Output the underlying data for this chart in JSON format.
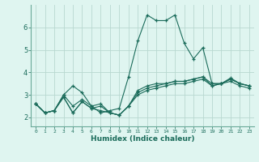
{
  "xlabel": "Humidex (Indice chaleur)",
  "bg_color": "#dff5f0",
  "grid_color": "#b8d8d0",
  "line_color": "#1a6b5a",
  "spine_color": "#6aaa99",
  "xlim": [
    -0.5,
    23.5
  ],
  "ylim": [
    1.6,
    7.0
  ],
  "yticks": [
    2,
    3,
    4,
    5,
    6
  ],
  "xtick_labels": [
    "0",
    "1",
    "2",
    "3",
    "4",
    "5",
    "6",
    "7",
    "8",
    "9",
    "10",
    "11",
    "12",
    "13",
    "14",
    "15",
    "16",
    "17",
    "18",
    "19",
    "20",
    "21",
    "22",
    "23"
  ],
  "lines": [
    {
      "x": [
        0,
        1,
        2,
        3,
        4,
        5,
        6,
        7,
        8,
        9,
        10,
        11,
        12,
        13,
        14,
        15,
        16,
        17,
        18,
        19,
        20,
        21,
        22,
        23
      ],
      "y": [
        2.6,
        2.2,
        2.3,
        3.0,
        3.4,
        3.1,
        2.5,
        2.2,
        2.3,
        2.4,
        3.8,
        5.4,
        6.55,
        6.3,
        6.3,
        6.55,
        5.3,
        4.6,
        5.1,
        3.5,
        3.5,
        3.75,
        3.5,
        3.4
      ]
    },
    {
      "x": [
        0,
        1,
        2,
        3,
        4,
        5,
        6,
        7,
        8,
        9,
        10,
        11,
        12,
        13,
        14,
        15,
        16,
        17,
        18,
        19,
        20,
        21,
        22,
        23
      ],
      "y": [
        2.6,
        2.2,
        2.3,
        2.9,
        2.2,
        2.7,
        2.4,
        2.5,
        2.2,
        2.1,
        2.5,
        3.2,
        3.4,
        3.5,
        3.5,
        3.6,
        3.6,
        3.7,
        3.8,
        3.4,
        3.5,
        3.7,
        3.5,
        3.4
      ]
    },
    {
      "x": [
        0,
        1,
        2,
        3,
        4,
        5,
        6,
        7,
        8,
        9,
        10,
        11,
        12,
        13,
        14,
        15,
        16,
        17,
        18,
        19,
        20,
        21,
        22,
        23
      ],
      "y": [
        2.6,
        2.2,
        2.3,
        2.9,
        2.2,
        2.7,
        2.4,
        2.3,
        2.2,
        2.1,
        2.5,
        3.0,
        3.2,
        3.3,
        3.4,
        3.5,
        3.5,
        3.6,
        3.7,
        3.4,
        3.5,
        3.6,
        3.4,
        3.3
      ]
    },
    {
      "x": [
        0,
        1,
        2,
        3,
        4,
        5,
        6,
        7,
        8,
        9,
        10,
        11,
        12,
        13,
        14,
        15,
        16,
        17,
        18,
        19,
        20,
        21,
        22,
        23
      ],
      "y": [
        2.6,
        2.2,
        2.3,
        3.0,
        2.5,
        2.8,
        2.5,
        2.6,
        2.2,
        2.1,
        2.5,
        3.1,
        3.3,
        3.4,
        3.5,
        3.6,
        3.6,
        3.7,
        3.8,
        3.5,
        3.5,
        3.7,
        3.5,
        3.4
      ]
    }
  ]
}
